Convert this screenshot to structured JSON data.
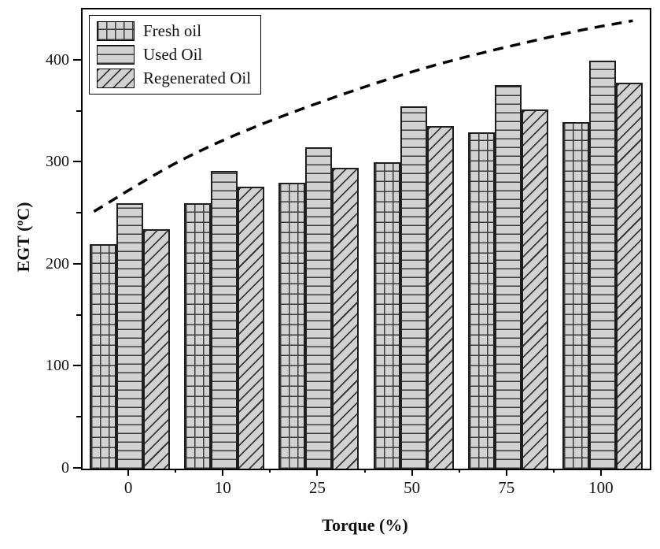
{
  "chart_data": {
    "type": "bar",
    "title": "",
    "xlabel": "Torque (%)",
    "ylabel": "EGT (°C)",
    "ylabel_parts": {
      "pre": "EGT (",
      "sup": "o",
      "post": "C)"
    },
    "categories": [
      "0",
      "10",
      "25",
      "50",
      "75",
      "100"
    ],
    "series": [
      {
        "name": "Fresh oil",
        "pattern": "grid",
        "values": [
          220,
          260,
          280,
          300,
          330,
          340
        ]
      },
      {
        "name": "Used Oil",
        "pattern": "horizontal",
        "values": [
          260,
          292,
          315,
          355,
          376,
          400
        ]
      },
      {
        "name": "Regenerated Oil",
        "pattern": "diagonal",
        "values": [
          235,
          276,
          295,
          336,
          352,
          378
        ]
      }
    ],
    "trend_line": {
      "style": "dashed",
      "color": "#000000",
      "points_frac_value": [
        [
          0.02,
          252
        ],
        [
          0.18,
          304
        ],
        [
          0.36,
          347
        ],
        [
          0.6,
          392
        ],
        [
          0.84,
          425
        ],
        [
          0.97,
          439
        ]
      ]
    },
    "ylim": [
      0,
      450
    ],
    "yticks_major": [
      0,
      100,
      200,
      300,
      400
    ],
    "yticks_minor": [
      50,
      150,
      250,
      350
    ],
    "ytick_labels": [
      "0",
      "100",
      "200",
      "300",
      "400"
    ],
    "grid": "off",
    "legend_position": "top-left",
    "colors": {
      "bar_fill": "#d2d2d2",
      "pattern_line": "#3a3a3a",
      "bar_border": "#1f1f1f",
      "axis": "#000000",
      "background": "#ffffff"
    }
  }
}
